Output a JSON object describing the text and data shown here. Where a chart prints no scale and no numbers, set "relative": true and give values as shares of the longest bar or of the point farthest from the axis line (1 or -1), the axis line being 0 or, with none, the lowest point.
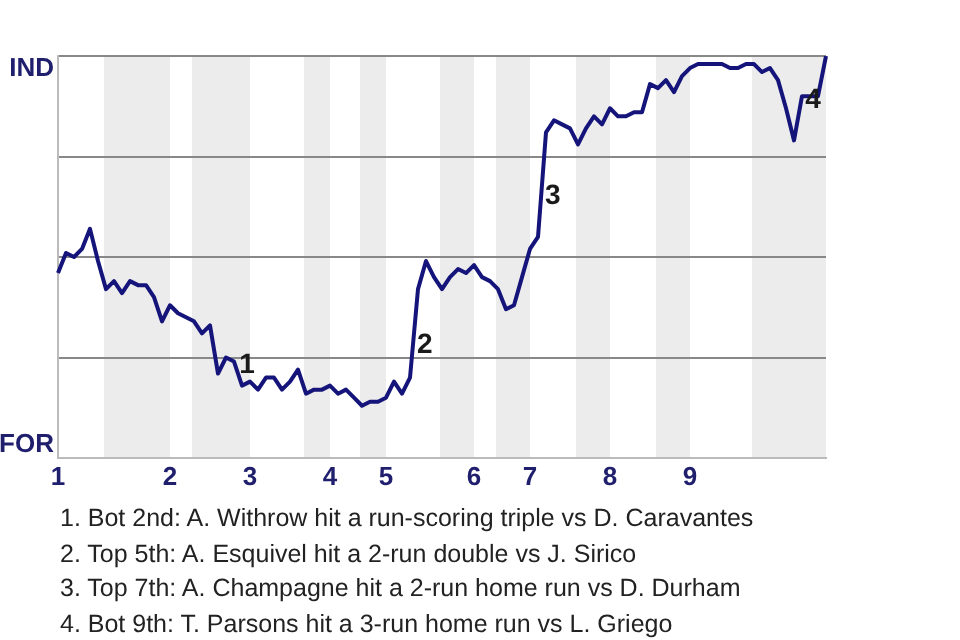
{
  "chart_data": {
    "type": "line",
    "categories": [
      "1",
      null,
      null,
      null,
      null,
      null,
      null,
      null,
      null,
      null,
      null,
      null,
      null,
      null,
      "2",
      null,
      null,
      null,
      null,
      null,
      null,
      null,
      null,
      null,
      "3",
      null,
      null,
      null,
      null,
      null,
      null,
      null,
      null,
      null,
      "4",
      null,
      null,
      null,
      null,
      null,
      null,
      "5",
      null,
      null,
      null,
      null,
      null,
      null,
      null,
      null,
      null,
      null,
      "6",
      null,
      null,
      null,
      null,
      null,
      null,
      "7",
      null,
      null,
      null,
      null,
      null,
      null,
      null,
      null,
      null,
      "8",
      null,
      null,
      null,
      null,
      null,
      null,
      null,
      null,
      null,
      "9",
      null,
      null,
      null,
      null,
      null,
      null,
      null,
      null,
      null,
      null,
      null,
      null,
      null,
      null,
      null,
      null,
      null
    ],
    "relative": true,
    "grid": "y",
    "legend": false,
    "marker": "none",
    "line_style": "solid",
    "tick_labels": "x",
    "series": [
      {
        "color": "#14147a",
        "values": [
          0.46,
          0.51,
          0.5,
          0.52,
          0.57,
          0.49,
          0.42,
          0.44,
          0.41,
          0.44,
          0.43,
          0.43,
          0.4,
          0.34,
          0.38,
          0.36,
          0.35,
          0.34,
          0.31,
          0.33,
          0.21,
          0.25,
          0.24,
          0.18,
          0.19,
          0.17,
          0.2,
          0.2,
          0.17,
          0.19,
          0.22,
          0.16,
          0.17,
          0.17,
          0.18,
          0.16,
          0.17,
          0.15,
          0.13,
          0.14,
          0.14,
          0.15,
          0.19,
          0.16,
          0.2,
          0.42,
          0.49,
          0.45,
          0.42,
          0.45,
          0.47,
          0.46,
          0.48,
          0.45,
          0.44,
          0.42,
          0.37,
          0.38,
          0.45,
          0.52,
          0.55,
          0.81,
          0.84,
          0.83,
          0.82,
          0.78,
          0.82,
          0.85,
          0.83,
          0.87,
          0.85,
          0.85,
          0.86,
          0.86,
          0.93,
          0.92,
          0.94,
          0.91,
          0.95,
          0.97,
          0.98,
          0.98,
          0.98,
          0.98,
          0.97,
          0.97,
          0.98,
          0.98,
          0.96,
          0.97,
          0.94,
          0.87,
          0.79,
          0.9,
          0.9,
          0.9,
          1
        ]
      }
    ],
    "annotations": [
      {
        "text": "1",
        "y": 0.23
      },
      {
        "text": "2",
        "y": 0.28
      },
      {
        "text": "3",
        "y": 0.65
      },
      {
        "text": "4",
        "y": 0.89
      },
      "IND",
      "FOR",
      "1. Bot 2nd: A. Withrow hit a run-scoring triple vs D. Caravantes",
      "2. Top 5th: A. Esquivel hit a 2-run double vs J. Sirico",
      "3. Top 7th: A. Champagne hit a 2-run home run vs D. Durham",
      "4. Bot 9th: T. Parsons hit a 3-run home run vs L. Griego"
    ]
  }
}
